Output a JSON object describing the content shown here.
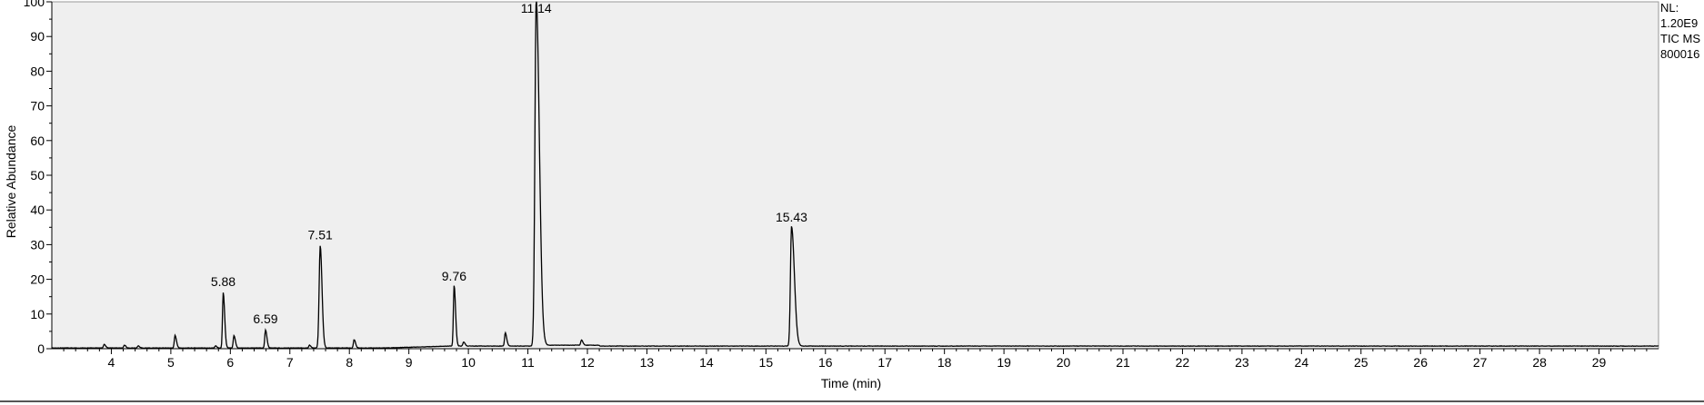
{
  "chart_data": {
    "type": "line",
    "title": "",
    "xlabel": "Time (min)",
    "ylabel": "Relative Abundance",
    "xlim": [
      3.0,
      30.0
    ],
    "ylim": [
      0,
      100
    ],
    "x_ticks": [
      4,
      5,
      6,
      7,
      8,
      9,
      10,
      11,
      12,
      13,
      14,
      15,
      16,
      17,
      18,
      19,
      20,
      21,
      22,
      23,
      24,
      25,
      26,
      27,
      28,
      29
    ],
    "y_ticks": [
      0,
      10,
      20,
      30,
      40,
      50,
      60,
      70,
      80,
      90,
      100
    ],
    "grid": false,
    "legend": "none",
    "series": [
      {
        "values_description_free": true,
        "peaks": [
          {
            "x": 3.88,
            "y": 1.0
          },
          {
            "x": 4.22,
            "y": 0.8
          },
          {
            "x": 4.45,
            "y": 0.6
          },
          {
            "x": 5.07,
            "y": 3.6
          },
          {
            "x": 5.75,
            "y": 0.6
          },
          {
            "x": 5.88,
            "y": 16.0
          },
          {
            "x": 6.06,
            "y": 3.6
          },
          {
            "x": 6.59,
            "y": 5.2
          },
          {
            "x": 7.33,
            "y": 0.8
          },
          {
            "x": 7.51,
            "y": 29.5
          },
          {
            "x": 8.08,
            "y": 2.4
          },
          {
            "x": 9.76,
            "y": 17.5
          },
          {
            "x": 9.92,
            "y": 1.2
          },
          {
            "x": 10.62,
            "y": 3.8
          },
          {
            "x": 11.14,
            "y": 100.0
          },
          {
            "x": 11.9,
            "y": 1.5
          },
          {
            "x": 15.43,
            "y": 34.5
          }
        ]
      }
    ],
    "peak_labels": [
      {
        "text": "5.88",
        "x": 5.88,
        "y": 16.0
      },
      {
        "text": "6.59",
        "x": 6.59,
        "y": 5.2
      },
      {
        "text": "7.51",
        "x": 7.51,
        "y": 29.5
      },
      {
        "text": "9.76",
        "x": 9.76,
        "y": 17.5
      },
      {
        "text": "11.14",
        "x": 11.14,
        "y": 100.0
      },
      {
        "text": "15.43",
        "x": 15.43,
        "y": 34.5
      }
    ],
    "colors": {
      "trace": "#000000",
      "plot_background": "#efefef",
      "axis": "#000000"
    }
  },
  "info": {
    "line1": "NL:",
    "line2": "1.20E9",
    "line3": "TIC  MS",
    "line4": "800016"
  }
}
